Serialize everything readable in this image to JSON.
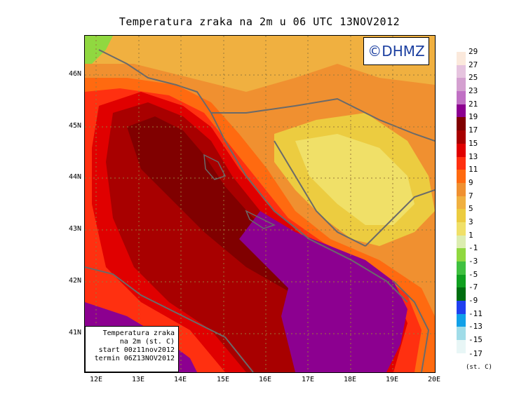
{
  "title": "Temperatura zraka na 2m u 06 UTC 13NOV2012",
  "logo_text": "©DHMZ",
  "info_box": {
    "line1": "Temperatura zraka",
    "line2": "na 2m (st. C)",
    "line3": "start 00z11nov2012",
    "line4": "termin 06Z13NOV2012"
  },
  "lat_labels": [
    "46N",
    "45N",
    "44N",
    "43N",
    "42N",
    "41N"
  ],
  "lon_labels": [
    "12E",
    "13E",
    "14E",
    "15E",
    "16E",
    "17E",
    "18E",
    "19E",
    "20E"
  ],
  "legend": {
    "unit": "(st. C)",
    "items": [
      {
        "label": "29",
        "color": "#fbe9dc"
      },
      {
        "label": "27",
        "color": "#e6c4df"
      },
      {
        "label": "25",
        "color": "#d4a0d0"
      },
      {
        "label": "23",
        "color": "#c070c4"
      },
      {
        "label": "21",
        "color": "#8c0090"
      },
      {
        "label": "19",
        "color": "#800000"
      },
      {
        "label": "17",
        "color": "#a80000"
      },
      {
        "label": "15",
        "color": "#e00000"
      },
      {
        "label": "13",
        "color": "#ff3010"
      },
      {
        "label": "11",
        "color": "#ff6a10"
      },
      {
        "label": "9",
        "color": "#f09030"
      },
      {
        "label": "7",
        "color": "#f0b040"
      },
      {
        "label": "5",
        "color": "#eccc40"
      },
      {
        "label": "3",
        "color": "#f0e068"
      },
      {
        "label": "1",
        "color": "#dcedb0"
      },
      {
        "label": "-1",
        "color": "#90d840"
      },
      {
        "label": "-3",
        "color": "#40c040"
      },
      {
        "label": "-5",
        "color": "#10a020"
      },
      {
        "label": "-7",
        "color": "#006e10"
      },
      {
        "label": "-9",
        "color": "#2040f0"
      },
      {
        "label": "-11",
        "color": "#10a0e8"
      },
      {
        "label": "-13",
        "color": "#a0dce8"
      },
      {
        "label": "-15",
        "color": "#e8f6f6"
      }
    ],
    "last_label": "-17"
  }
}
